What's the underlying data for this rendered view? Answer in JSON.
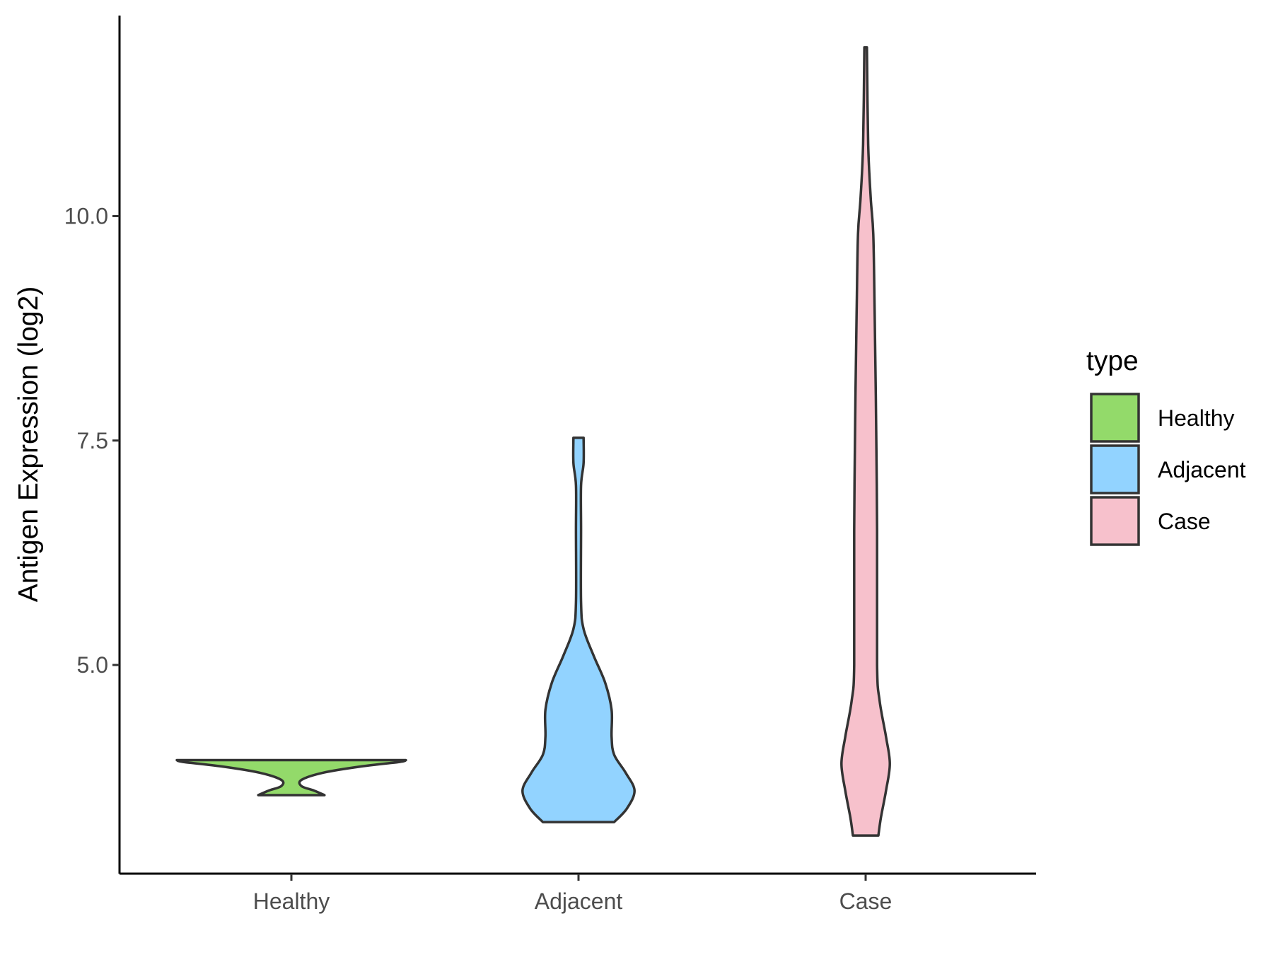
{
  "chart_data": {
    "type": "violin",
    "ylabel": "Antigen Expression (log2)",
    "xlabel": "",
    "y_ticks": [
      "5.0",
      "7.5",
      "10.0"
    ],
    "y_tick_values": [
      5.0,
      7.5,
      10.0
    ],
    "ylim": [
      2.75,
      12.3
    ],
    "categories": [
      "Healthy",
      "Adjacent",
      "Case"
    ],
    "grid": false,
    "legend": {
      "title": "type",
      "position": "right",
      "entries": [
        "Healthy",
        "Adjacent",
        "Case"
      ]
    },
    "series": [
      {
        "name": "Healthy",
        "color": "#93DA6A",
        "y_min": 3.55,
        "y_max": 3.94,
        "profile": [
          [
            3.55,
            0.26
          ],
          [
            3.6,
            0.18
          ],
          [
            3.65,
            0.08
          ],
          [
            3.72,
            0.08
          ],
          [
            3.8,
            0.25
          ],
          [
            3.87,
            0.55
          ],
          [
            3.92,
            0.85
          ],
          [
            3.94,
            0.9
          ]
        ]
      },
      {
        "name": "Adjacent",
        "color": "#92D3FF",
        "y_min": 3.25,
        "y_max": 7.53,
        "profile": [
          [
            3.25,
            0.28
          ],
          [
            3.4,
            0.38
          ],
          [
            3.6,
            0.44
          ],
          [
            3.8,
            0.37
          ],
          [
            4.0,
            0.28
          ],
          [
            4.2,
            0.26
          ],
          [
            4.5,
            0.26
          ],
          [
            4.8,
            0.21
          ],
          [
            5.1,
            0.12
          ],
          [
            5.4,
            0.04
          ],
          [
            5.7,
            0.02
          ],
          [
            6.5,
            0.02
          ],
          [
            7.0,
            0.02
          ],
          [
            7.25,
            0.04
          ],
          [
            7.53,
            0.04
          ]
        ]
      },
      {
        "name": "Case",
        "color": "#F7C1CC",
        "y_min": 3.1,
        "y_max": 11.88,
        "profile": [
          [
            3.1,
            0.1
          ],
          [
            3.3,
            0.12
          ],
          [
            3.6,
            0.16
          ],
          [
            3.9,
            0.19
          ],
          [
            4.2,
            0.16
          ],
          [
            4.6,
            0.11
          ],
          [
            5.0,
            0.09
          ],
          [
            6.5,
            0.09
          ],
          [
            8.0,
            0.08
          ],
          [
            9.0,
            0.07
          ],
          [
            9.8,
            0.06
          ],
          [
            10.2,
            0.04
          ],
          [
            10.8,
            0.02
          ],
          [
            11.88,
            0.01
          ]
        ]
      }
    ]
  }
}
